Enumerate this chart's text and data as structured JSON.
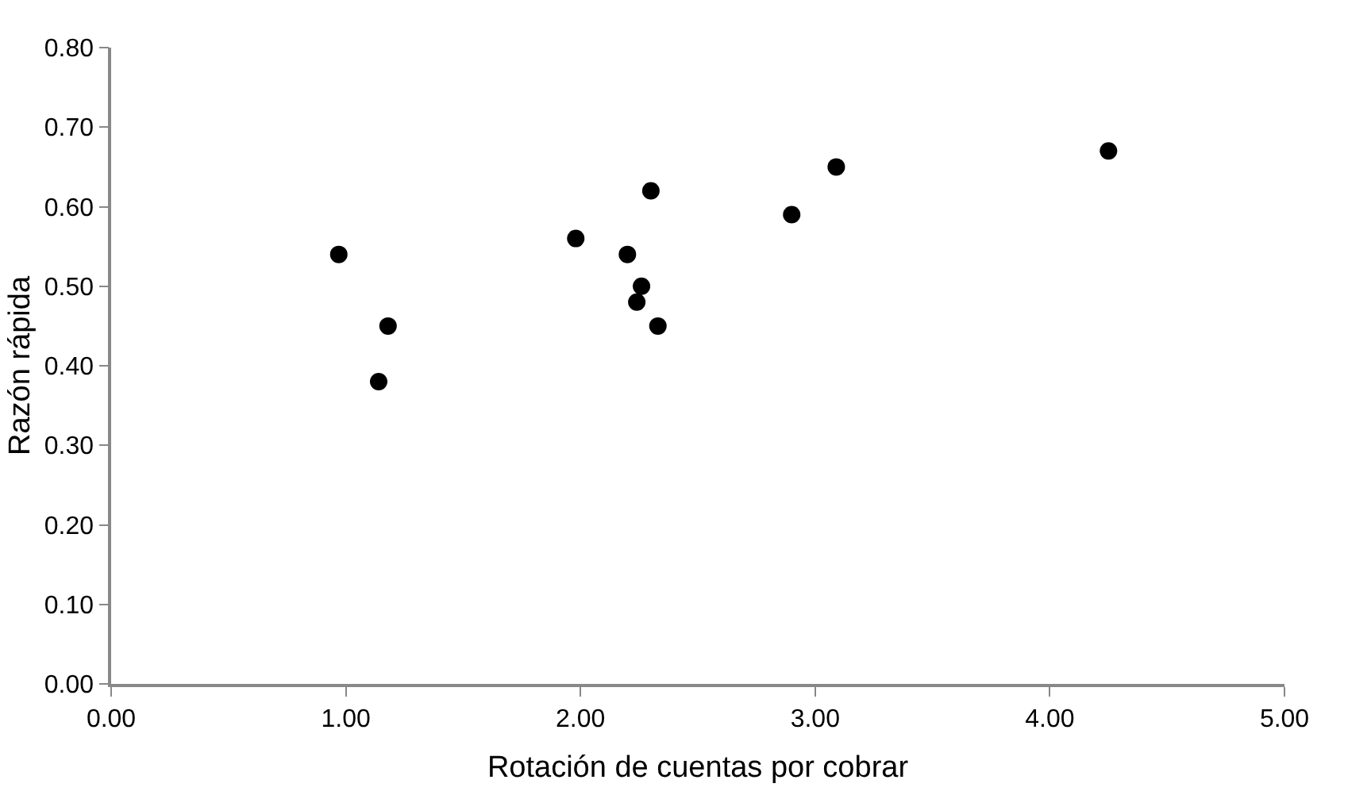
{
  "chart_data": {
    "type": "scatter",
    "xlabel": "Rotación de cuentas por cobrar",
    "ylabel": "Razón rápida",
    "x": [
      0.97,
      1.18,
      1.14,
      1.98,
      2.2,
      2.26,
      2.24,
      2.3,
      2.33,
      2.9,
      3.09,
      4.25
    ],
    "values": [
      0.54,
      0.45,
      0.38,
      0.56,
      0.54,
      0.5,
      0.48,
      0.62,
      0.45,
      0.59,
      0.65,
      0.67
    ],
    "color": "#000000",
    "marker": "circle",
    "xlim": [
      0,
      5
    ],
    "xticks": [
      {
        "value": 0,
        "label": "0.00"
      },
      {
        "value": 1,
        "label": "1.00"
      },
      {
        "value": 2,
        "label": "2.00"
      },
      {
        "value": 3,
        "label": "3.00"
      },
      {
        "value": 4,
        "label": "4.00"
      },
      {
        "value": 5,
        "label": "5.00"
      }
    ],
    "ylim": [
      0,
      0.8
    ],
    "yticks": [
      {
        "value": 0,
        "label": "0.00"
      },
      {
        "value": 0.1,
        "label": "0.10"
      },
      {
        "value": 0.2,
        "label": "0.20"
      },
      {
        "value": 0.3,
        "label": "0.30"
      },
      {
        "value": 0.4,
        "label": "0.40"
      },
      {
        "value": 0.5,
        "label": "0.50"
      },
      {
        "value": 0.6,
        "label": "0.60"
      },
      {
        "value": 0.7,
        "label": "0.70"
      },
      {
        "value": 0.8,
        "label": "0.80"
      }
    ],
    "legend": false
  }
}
